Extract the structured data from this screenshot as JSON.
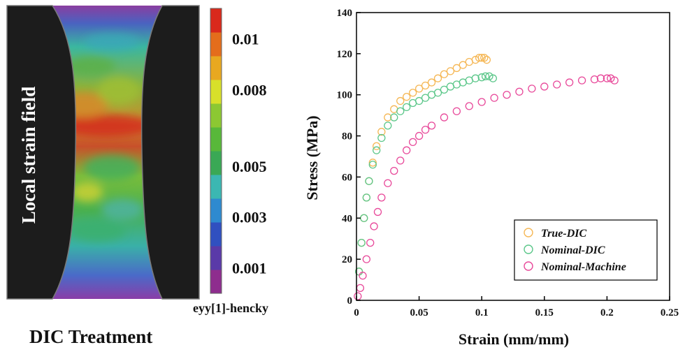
{
  "left_panel": {
    "vertical_label": "Local strain field",
    "treatment_label": "DIC Treatment",
    "colorbar": {
      "title": "eyy[1]-hencky",
      "tick_labels": [
        "0.01",
        "0.008",
        "0.005",
        "0.003",
        "0.001"
      ],
      "tick_values": [
        0.01,
        0.008,
        0.005,
        0.003,
        0.001
      ],
      "range": [
        0.0,
        0.0112
      ],
      "colors": [
        "#8e2d8e",
        "#5a3aa8",
        "#3050c0",
        "#2e8ad0",
        "#3bb7b2",
        "#3aa855",
        "#58b83a",
        "#8cc832",
        "#d8e02a",
        "#e8a820",
        "#e46d1c",
        "#d9291c"
      ]
    },
    "grip_color": "#1c1c1c"
  },
  "chart_data": {
    "type": "scatter",
    "title": "",
    "xlabel": "Strain (mm/mm)",
    "ylabel": "Stress (MPa)",
    "xlim": [
      0,
      0.25
    ],
    "ylim": [
      0,
      140
    ],
    "xticks": [
      0,
      0.05,
      0.1,
      0.15,
      0.2,
      0.25
    ],
    "xtick_labels": [
      "0",
      "0.05",
      "0.1",
      "0.15",
      "0.2",
      "0.25"
    ],
    "yticks": [
      0,
      20,
      40,
      60,
      80,
      100,
      120,
      140
    ],
    "ytick_labels": [
      "0",
      "20",
      "40",
      "60",
      "80",
      "100",
      "120",
      "140"
    ],
    "grid": false,
    "legend_position": "bottom-right",
    "marker": "open-circle",
    "series": [
      {
        "name": "True-DIC",
        "color": "#f5b755",
        "x": [
          0.002,
          0.004,
          0.006,
          0.008,
          0.01,
          0.013,
          0.016,
          0.02,
          0.025,
          0.03,
          0.035,
          0.04,
          0.045,
          0.05,
          0.055,
          0.06,
          0.065,
          0.07,
          0.075,
          0.08,
          0.085,
          0.09,
          0.095,
          0.098,
          0.1,
          0.102,
          0.104
        ],
        "y": [
          14,
          28,
          40,
          50,
          58,
          67,
          75,
          82,
          89,
          93,
          97,
          99,
          101,
          103,
          104.5,
          106,
          108,
          110,
          111.5,
          113,
          114.5,
          116,
          117,
          118,
          118,
          118,
          117
        ]
      },
      {
        "name": "Nominal-DIC",
        "color": "#5cc78a",
        "x": [
          0.002,
          0.004,
          0.006,
          0.008,
          0.01,
          0.013,
          0.016,
          0.02,
          0.025,
          0.03,
          0.035,
          0.04,
          0.045,
          0.05,
          0.055,
          0.06,
          0.065,
          0.07,
          0.075,
          0.08,
          0.085,
          0.09,
          0.095,
          0.1,
          0.103,
          0.106,
          0.109
        ],
        "y": [
          14,
          28,
          40,
          50,
          58,
          66,
          73,
          79,
          85,
          89,
          92,
          94,
          96,
          97,
          98.5,
          100,
          101,
          102.5,
          104,
          105,
          106,
          107,
          108,
          108.5,
          109,
          109,
          108
        ]
      },
      {
        "name": "Nominal-Machine",
        "color": "#e8499a",
        "x": [
          0.001,
          0.003,
          0.005,
          0.008,
          0.011,
          0.014,
          0.017,
          0.02,
          0.025,
          0.03,
          0.035,
          0.04,
          0.045,
          0.05,
          0.055,
          0.06,
          0.07,
          0.08,
          0.09,
          0.1,
          0.11,
          0.12,
          0.13,
          0.14,
          0.15,
          0.16,
          0.17,
          0.18,
          0.19,
          0.195,
          0.2,
          0.203,
          0.206
        ],
        "y": [
          2,
          6,
          12,
          20,
          28,
          36,
          43,
          50,
          57,
          63,
          68,
          73,
          77,
          80,
          83,
          85,
          89,
          92,
          94.5,
          96.5,
          98.5,
          100,
          101.5,
          103,
          104,
          105,
          106,
          107,
          107.5,
          108,
          108,
          108,
          107
        ]
      }
    ]
  }
}
